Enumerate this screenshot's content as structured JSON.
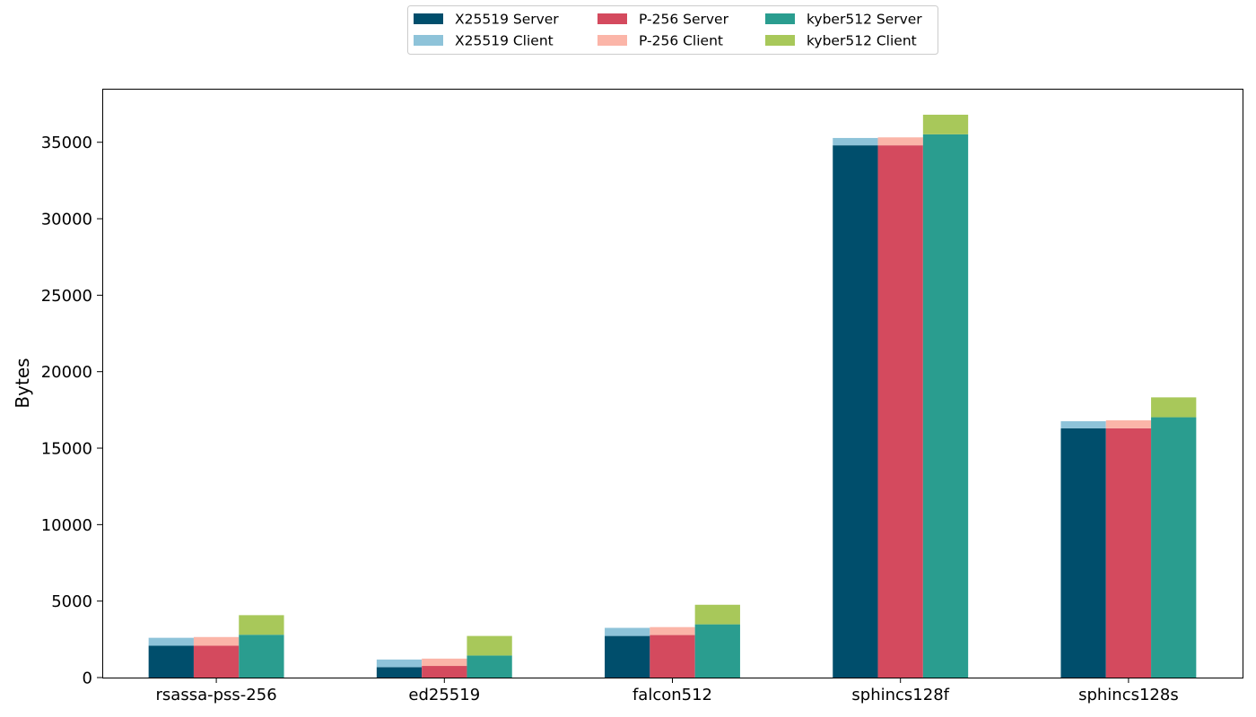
{
  "chart_data": {
    "type": "bar",
    "stacked_groups": true,
    "title": "",
    "xlabel": "",
    "ylabel": "Bytes",
    "ylim": [
      0,
      38500
    ],
    "yticks": [
      0,
      5000,
      10000,
      15000,
      20000,
      25000,
      30000,
      35000
    ],
    "ytick_labels": [
      "0",
      "5000",
      "10000",
      "15000",
      "20000",
      "25000",
      "30000",
      "35000"
    ],
    "grid": false,
    "legend_position": "top-center",
    "legend_columns": 3,
    "categories": [
      "rsassa-pss-256",
      "ed25519",
      "falcon512",
      "sphincs128f",
      "sphincs128s"
    ],
    "groups": [
      {
        "name": "X25519",
        "server": {
          "name": "X25519 Server",
          "color": "#004e6c",
          "values": [
            2080,
            680,
            2720,
            34800,
            16300
          ]
        },
        "client": {
          "name": "X25519 Client",
          "color": "#8ec3d9",
          "values": [
            520,
            500,
            530,
            480,
            460
          ]
        }
      },
      {
        "name": "P-256",
        "server": {
          "name": "P-256 Server",
          "color": "#d44a5e",
          "values": [
            2080,
            760,
            2780,
            34800,
            16300
          ]
        },
        "client": {
          "name": "P-256 Client",
          "color": "#fbb5a8",
          "values": [
            570,
            480,
            520,
            520,
            520
          ]
        }
      },
      {
        "name": "kyber512",
        "server": {
          "name": "kyber512 Server",
          "color": "#2a9d8f",
          "values": [
            2800,
            1440,
            3480,
            35520,
            17020
          ]
        },
        "client": {
          "name": "kyber512 Client",
          "color": "#a8c85a",
          "values": [
            1280,
            1280,
            1280,
            1280,
            1300
          ]
        }
      }
    ],
    "legend_order": [
      "X25519 Server",
      "X25519 Client",
      "P-256 Server",
      "P-256 Client",
      "kyber512 Server",
      "kyber512 Client"
    ]
  }
}
